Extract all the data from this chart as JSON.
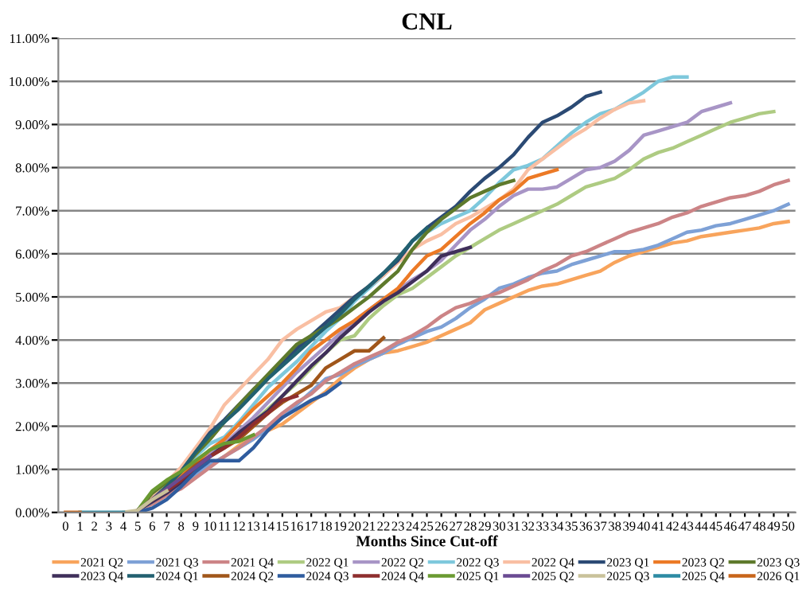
{
  "chart_data": {
    "type": "line",
    "title": "CNL",
    "xlabel": "Months Since Cut-off",
    "categories": [
      "0",
      "1",
      "2",
      "3",
      "4",
      "5",
      "6",
      "7",
      "8",
      "9",
      "10",
      "11",
      "12",
      "13",
      "14",
      "15",
      "16",
      "17",
      "18",
      "19",
      "20",
      "21",
      "22",
      "23",
      "24",
      "25",
      "26",
      "27",
      "28",
      "29",
      "30",
      "31",
      "32",
      "33",
      "34",
      "35",
      "36",
      "37",
      "38",
      "39",
      "40",
      "41",
      "42",
      "43",
      "44",
      "45",
      "46",
      "47",
      "48",
      "49",
      "50"
    ],
    "ylim": [
      0,
      11
    ],
    "yticks": [
      {
        "value": 0,
        "label": "0.00%"
      },
      {
        "value": 1,
        "label": "1.00%"
      },
      {
        "value": 2,
        "label": "2.00%"
      },
      {
        "value": 3,
        "label": "3.00%"
      },
      {
        "value": 4,
        "label": "4.00%"
      },
      {
        "value": 5,
        "label": "5.00%"
      },
      {
        "value": 6,
        "label": "6.00%"
      },
      {
        "value": 7,
        "label": "7.00%"
      },
      {
        "value": 8,
        "label": "8.00%"
      },
      {
        "value": 9,
        "label": "9.00%"
      },
      {
        "value": 10,
        "label": "10.00%"
      },
      {
        "value": 11,
        "label": "11.00%"
      }
    ],
    "grid": "y",
    "legend": "bottom",
    "marker": "none",
    "line_style": "solid",
    "series": [
      {
        "name": "2021 Q2",
        "color": "#f8a45c",
        "values": [
          null,
          null,
          null,
          null,
          null,
          0.05,
          0.2,
          0.4,
          0.6,
          0.85,
          1.1,
          1.3,
          1.55,
          1.75,
          1.9,
          2.05,
          2.3,
          2.55,
          2.8,
          3.1,
          3.35,
          3.55,
          3.7,
          3.75,
          3.85,
          3.95,
          4.1,
          4.25,
          4.4,
          4.7,
          4.85,
          5.0,
          5.15,
          5.25,
          5.3,
          5.4,
          5.5,
          5.6,
          5.8,
          5.95,
          6.05,
          6.15,
          6.25,
          6.3,
          6.4,
          6.45,
          6.5,
          6.55,
          6.6,
          6.7,
          6.75
        ]
      },
      {
        "name": "2021 Q3",
        "color": "#7ea1d6",
        "values": [
          null,
          null,
          null,
          null,
          null,
          0.05,
          0.25,
          0.45,
          0.65,
          0.9,
          1.1,
          1.3,
          1.5,
          1.7,
          1.95,
          2.2,
          2.5,
          2.8,
          3.1,
          3.2,
          3.4,
          3.55,
          3.7,
          3.9,
          4.05,
          4.2,
          4.3,
          4.5,
          4.75,
          4.95,
          5.2,
          5.3,
          5.45,
          5.55,
          5.6,
          5.75,
          5.85,
          5.95,
          6.05,
          6.05,
          6.1,
          6.2,
          6.35,
          6.5,
          6.55,
          6.65,
          6.7,
          6.8,
          6.9,
          7.0,
          7.15
        ]
      },
      {
        "name": "2021 Q4",
        "color": "#cc8486",
        "values": [
          null,
          null,
          null,
          null,
          null,
          0.05,
          0.2,
          0.4,
          0.55,
          0.8,
          1.05,
          1.3,
          1.5,
          1.75,
          2.0,
          2.3,
          2.55,
          2.75,
          3.05,
          3.25,
          3.45,
          3.6,
          3.75,
          3.95,
          4.1,
          4.3,
          4.55,
          4.75,
          4.85,
          5.0,
          5.1,
          5.25,
          5.4,
          5.6,
          5.75,
          5.95,
          6.05,
          6.2,
          6.35,
          6.5,
          6.6,
          6.7,
          6.85,
          6.95,
          7.1,
          7.2,
          7.3,
          7.35,
          7.45,
          7.6,
          7.7
        ]
      },
      {
        "name": "2022 Q1",
        "color": "#aecb82",
        "values": [
          null,
          null,
          null,
          null,
          null,
          0.05,
          0.25,
          0.5,
          0.8,
          1.1,
          1.35,
          1.6,
          1.85,
          2.1,
          2.4,
          2.7,
          3.0,
          3.35,
          3.7,
          4.0,
          4.1,
          4.5,
          4.8,
          5.05,
          5.2,
          5.45,
          5.7,
          5.95,
          6.15,
          6.35,
          6.55,
          6.7,
          6.85,
          7.0,
          7.15,
          7.35,
          7.55,
          7.65,
          7.75,
          7.95,
          8.2,
          8.35,
          8.45,
          8.6,
          8.75,
          8.9,
          9.05,
          9.15,
          9.25,
          9.3,
          null
        ]
      },
      {
        "name": "2022 Q2",
        "color": "#a895c6",
        "values": [
          null,
          null,
          null,
          null,
          null,
          0.05,
          0.25,
          0.5,
          0.8,
          1.1,
          1.35,
          1.6,
          1.9,
          2.2,
          2.55,
          2.9,
          3.25,
          3.55,
          3.85,
          4.15,
          4.45,
          4.7,
          4.95,
          5.15,
          5.4,
          5.6,
          5.85,
          6.2,
          6.55,
          6.8,
          7.1,
          7.35,
          7.5,
          7.5,
          7.55,
          7.75,
          7.95,
          8.0,
          8.15,
          8.4,
          8.75,
          8.85,
          8.95,
          9.05,
          9.3,
          9.4,
          9.5,
          null,
          null,
          null,
          null
        ]
      },
      {
        "name": "2022 Q3",
        "color": "#7ec8dc",
        "values": [
          null,
          null,
          null,
          null,
          null,
          0.05,
          0.25,
          0.55,
          0.9,
          1.3,
          1.6,
          1.75,
          2.1,
          2.5,
          2.9,
          3.2,
          3.5,
          3.85,
          4.2,
          4.5,
          4.9,
          5.2,
          5.5,
          5.85,
          6.3,
          6.5,
          6.7,
          6.85,
          7.0,
          7.3,
          7.65,
          7.95,
          8.05,
          8.2,
          8.5,
          8.8,
          9.05,
          9.25,
          9.35,
          9.55,
          9.75,
          10.0,
          10.1,
          10.1,
          null,
          null,
          null,
          null,
          null,
          null,
          null
        ]
      },
      {
        "name": "2022 Q4",
        "color": "#f9bfa3",
        "values": [
          null,
          null,
          null,
          null,
          null,
          0.05,
          0.35,
          0.7,
          1.05,
          1.5,
          1.95,
          2.5,
          2.85,
          3.2,
          3.55,
          4.0,
          4.25,
          4.45,
          4.65,
          4.75,
          5.0,
          5.25,
          5.5,
          5.8,
          6.1,
          6.3,
          6.45,
          6.7,
          6.85,
          7.05,
          7.25,
          7.5,
          7.95,
          8.2,
          8.45,
          8.7,
          8.9,
          9.15,
          9.35,
          9.5,
          9.55,
          null,
          null,
          null,
          null,
          null,
          null,
          null,
          null,
          null,
          null
        ]
      },
      {
        "name": "2023 Q1",
        "color": "#2b4a74",
        "values": [
          null,
          null,
          null,
          null,
          null,
          0.05,
          0.3,
          0.6,
          0.95,
          1.4,
          1.85,
          2.15,
          2.5,
          2.85,
          3.15,
          3.45,
          3.8,
          4.1,
          4.4,
          4.7,
          5.0,
          5.25,
          5.55,
          5.85,
          6.3,
          6.6,
          6.85,
          7.1,
          7.45,
          7.75,
          8.0,
          8.3,
          8.7,
          9.05,
          9.2,
          9.4,
          9.65,
          9.75,
          null,
          null,
          null,
          null,
          null,
          null,
          null,
          null,
          null,
          null,
          null,
          null,
          null
        ]
      },
      {
        "name": "2023 Q2",
        "color": "#ec7a26",
        "values": [
          null,
          null,
          null,
          null,
          null,
          0.05,
          0.3,
          0.55,
          0.85,
          1.15,
          1.45,
          1.7,
          2.05,
          2.4,
          2.7,
          3.0,
          3.35,
          3.75,
          4.0,
          4.25,
          4.45,
          4.7,
          4.95,
          5.2,
          5.6,
          5.95,
          6.1,
          6.4,
          6.7,
          6.95,
          7.25,
          7.45,
          7.75,
          7.85,
          7.95,
          null,
          null,
          null,
          null,
          null,
          null,
          null,
          null,
          null,
          null,
          null,
          null,
          null,
          null,
          null,
          null
        ]
      },
      {
        "name": "2023 Q3",
        "color": "#5e7a2c",
        "values": [
          null,
          null,
          null,
          null,
          null,
          0.05,
          0.45,
          0.7,
          0.95,
          1.35,
          1.7,
          2.1,
          2.5,
          2.85,
          3.2,
          3.55,
          3.9,
          4.1,
          4.3,
          4.5,
          4.75,
          5.0,
          5.3,
          5.6,
          6.1,
          6.5,
          6.8,
          7.05,
          7.3,
          7.45,
          7.6,
          7.7,
          null,
          null,
          null,
          null,
          null,
          null,
          null,
          null,
          null,
          null,
          null,
          null,
          null,
          null,
          null,
          null,
          null,
          null,
          null
        ]
      },
      {
        "name": "2023 Q4",
        "color": "#3f2f5a",
        "values": [
          null,
          null,
          null,
          null,
          null,
          0.05,
          0.25,
          0.45,
          0.7,
          1.0,
          1.3,
          1.55,
          1.85,
          2.1,
          2.35,
          2.7,
          3.05,
          3.4,
          3.7,
          4.05,
          4.35,
          4.65,
          4.9,
          5.1,
          5.35,
          5.6,
          5.95,
          6.05,
          6.15,
          null,
          null,
          null,
          null,
          null,
          null,
          null,
          null,
          null,
          null,
          null,
          null,
          null,
          null,
          null,
          null,
          null,
          null,
          null,
          null,
          null,
          null
        ]
      },
      {
        "name": "2024 Q1",
        "color": "#226070",
        "values": [
          null,
          null,
          null,
          null,
          null,
          0.05,
          0.3,
          0.6,
          0.95,
          1.4,
          1.8,
          2.1,
          2.4,
          2.75,
          3.1,
          3.4,
          3.7,
          4.0,
          4.3,
          4.6,
          4.95,
          5.25,
          5.55,
          5.9,
          6.3,
          6.6,
          null,
          null,
          null,
          null,
          null,
          null,
          null,
          null,
          null,
          null,
          null,
          null,
          null,
          null,
          null,
          null,
          null,
          null,
          null,
          null,
          null,
          null,
          null,
          null,
          null
        ]
      },
      {
        "name": "2024 Q2",
        "color": "#a0561a",
        "values": [
          null,
          null,
          null,
          null,
          null,
          0.05,
          0.3,
          0.55,
          0.8,
          1.1,
          1.3,
          1.5,
          1.7,
          2.0,
          2.3,
          2.55,
          2.75,
          2.95,
          3.35,
          3.55,
          3.75,
          3.75,
          4.05,
          null,
          null,
          null,
          null,
          null,
          null,
          null,
          null,
          null,
          null,
          null,
          null,
          null,
          null,
          null,
          null,
          null,
          null,
          null,
          null,
          null,
          null,
          null,
          null,
          null,
          null,
          null,
          null
        ]
      },
      {
        "name": "2024 Q3",
        "color": "#2f5c9e",
        "values": [
          null,
          null,
          null,
          null,
          null,
          0,
          0.1,
          0.3,
          0.6,
          0.95,
          1.2,
          1.2,
          1.2,
          1.5,
          1.9,
          2.2,
          2.4,
          2.6,
          2.75,
          3.0,
          null,
          null,
          null,
          null,
          null,
          null,
          null,
          null,
          null,
          null,
          null,
          null,
          null,
          null,
          null,
          null,
          null,
          null,
          null,
          null,
          null,
          null,
          null,
          null,
          null,
          null,
          null,
          null,
          null,
          null,
          null
        ]
      },
      {
        "name": "2024 Q4",
        "color": "#8e2e2e",
        "values": [
          null,
          null,
          null,
          null,
          null,
          0.05,
          0.3,
          0.5,
          0.75,
          1.05,
          1.3,
          1.5,
          1.75,
          2.05,
          2.3,
          2.6,
          2.7,
          null,
          null,
          null,
          null,
          null,
          null,
          null,
          null,
          null,
          null,
          null,
          null,
          null,
          null,
          null,
          null,
          null,
          null,
          null,
          null,
          null,
          null,
          null,
          null,
          null,
          null,
          null,
          null,
          null,
          null,
          null,
          null,
          null,
          null
        ]
      },
      {
        "name": "2025 Q1",
        "color": "#6a9a32",
        "values": [
          null,
          null,
          null,
          null,
          null,
          0.05,
          0.5,
          0.75,
          0.95,
          1.2,
          1.45,
          1.6,
          1.65,
          1.8,
          null,
          null,
          null,
          null,
          null,
          null,
          null,
          null,
          null,
          null,
          null,
          null,
          null,
          null,
          null,
          null,
          null,
          null,
          null,
          null,
          null,
          null,
          null,
          null,
          null,
          null,
          null,
          null,
          null,
          null,
          null,
          null,
          null,
          null,
          null,
          null,
          null
        ]
      },
      {
        "name": "2025 Q2",
        "color": "#6a4a92",
        "values": [
          null,
          null,
          null,
          null,
          null,
          0.05,
          0.3,
          0.55,
          0.8,
          1.05,
          1.3,
          null,
          null,
          null,
          null,
          null,
          null,
          null,
          null,
          null,
          null,
          null,
          null,
          null,
          null,
          null,
          null,
          null,
          null,
          null,
          null,
          null,
          null,
          null,
          null,
          null,
          null,
          null,
          null,
          null,
          null,
          null,
          null,
          null,
          null,
          null,
          null,
          null,
          null,
          null,
          null
        ]
      },
      {
        "name": "2025 Q3",
        "color": "#c9c29a",
        "values": [
          null,
          null,
          null,
          null,
          0,
          0.05,
          0.3,
          0.5,
          null,
          null,
          null,
          null,
          null,
          null,
          null,
          null,
          null,
          null,
          null,
          null,
          null,
          null,
          null,
          null,
          null,
          null,
          null,
          null,
          null,
          null,
          null,
          null,
          null,
          null,
          null,
          null,
          null,
          null,
          null,
          null,
          null,
          null,
          null,
          null,
          null,
          null,
          null,
          null,
          null,
          null,
          null
        ]
      },
      {
        "name": "2025 Q4",
        "color": "#2d8ba3",
        "values": [
          null,
          0,
          0,
          0,
          0,
          null,
          null,
          null,
          null,
          null,
          null,
          null,
          null,
          null,
          null,
          null,
          null,
          null,
          null,
          null,
          null,
          null,
          null,
          null,
          null,
          null,
          null,
          null,
          null,
          null,
          null,
          null,
          null,
          null,
          null,
          null,
          null,
          null,
          null,
          null,
          null,
          null,
          null,
          null,
          null,
          null,
          null,
          null,
          null,
          null,
          null
        ]
      },
      {
        "name": "2026 Q1",
        "color": "#c8651a",
        "values": [
          0,
          0,
          null,
          null,
          null,
          null,
          null,
          null,
          null,
          null,
          null,
          null,
          null,
          null,
          null,
          null,
          null,
          null,
          null,
          null,
          null,
          null,
          null,
          null,
          null,
          null,
          null,
          null,
          null,
          null,
          null,
          null,
          null,
          null,
          null,
          null,
          null,
          null,
          null,
          null,
          null,
          null,
          null,
          null,
          null,
          null,
          null,
          null,
          null,
          null,
          null
        ]
      }
    ]
  }
}
